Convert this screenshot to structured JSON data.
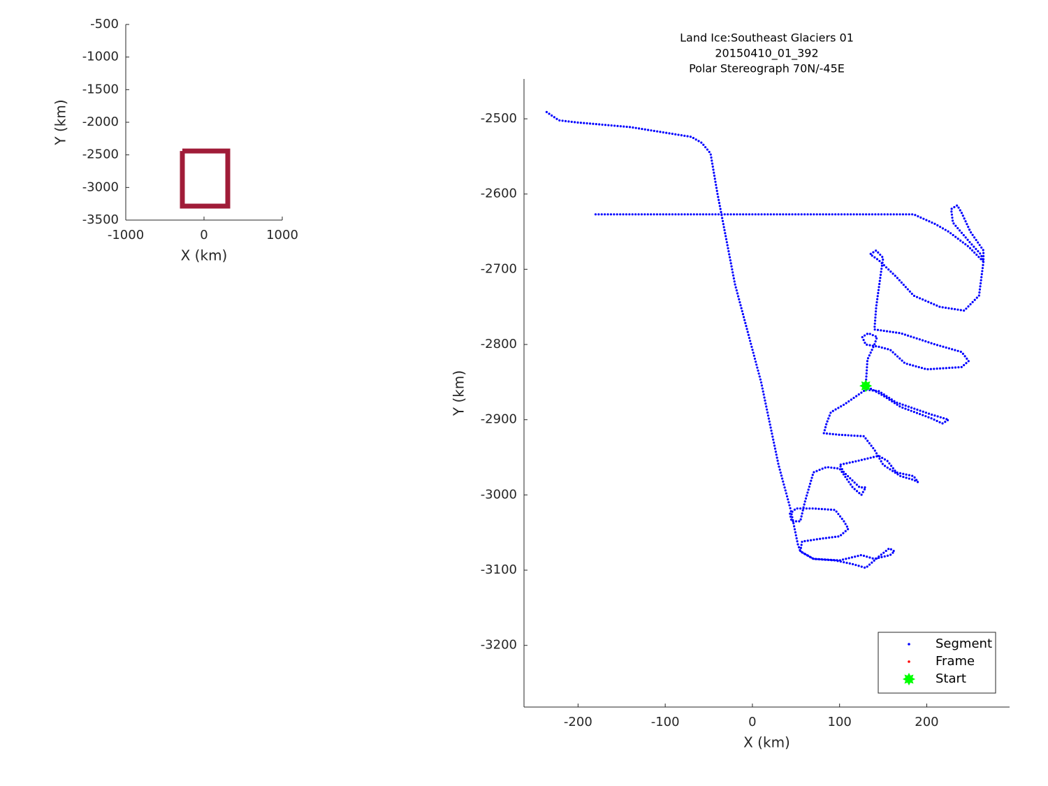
{
  "chart_data": [
    {
      "type": "line",
      "xlabel": "X (km)",
      "ylabel": "Y (km)",
      "xlim": [
        -1000,
        1000
      ],
      "ylim": [
        -3500,
        -500
      ],
      "xticks": [
        -1000,
        0,
        1000
      ],
      "yticks": [
        -3500,
        -3000,
        -2500,
        -2000,
        -1500,
        -1000,
        -500
      ],
      "series": [
        {
          "color": "#a01c38",
          "x": [
            -277,
            304,
            304,
            -277,
            -277
          ],
          "y": [
            -2440,
            -2440,
            -3286,
            -3286,
            -2440
          ]
        }
      ]
    },
    {
      "type": "line",
      "title": [
        "Land Ice:Southeast Glaciers 01",
        "20150410_01_392",
        "Polar Stereograph 70N/-45E"
      ],
      "xlabel": "X (km)",
      "ylabel": "Y (km)",
      "xlim": [
        -262,
        295
      ],
      "ylim": [
        -3282,
        -2447
      ],
      "xticks": [
        -200,
        -100,
        0,
        100,
        200
      ],
      "yticks": [
        -3200,
        -3100,
        -3000,
        -2900,
        -2800,
        -2700,
        -2600,
        -2500
      ],
      "legend": "southeast",
      "series": [
        {
          "name": "Segment",
          "color": "#0000ff",
          "marker": "point",
          "x": [
            -236,
            -222,
            -200,
            -140,
            -70,
            -58,
            -48,
            -40,
            -20,
            10,
            30,
            44,
            52,
            55,
            70,
            100,
            125,
            140,
            158,
            163,
            157,
            145,
            130,
            115,
            95,
            70,
            55,
            57,
            80,
            100,
            110,
            105,
            95,
            70,
            50,
            43,
            45,
            55,
            60,
            70,
            85,
            100,
            115,
            125,
            130,
            123,
            105,
            100,
            120,
            145,
            155,
            165,
            185,
            190,
            185,
            170,
            150,
            140,
            128,
            100,
            82,
            85,
            90,
            105,
            130,
            145,
            165,
            185,
            205,
            225,
            218,
            205,
            170,
            150,
            130,
            132,
            140,
            143,
            133,
            126,
            130,
            145,
            158,
            175,
            200,
            240,
            248,
            240,
            210,
            170,
            140,
            142,
            148,
            150,
            142,
            135,
            145,
            165,
            185,
            215,
            243,
            260,
            265,
            262,
            250,
            230,
            228,
            235,
            240,
            250,
            265,
            265,
            248,
            225,
            210,
            185,
            100,
            0,
            -100,
            -180
          ],
          "y": [
            -2491,
            -2502,
            -2505,
            -2511,
            -2524,
            -2532,
            -2546,
            -2600,
            -2720,
            -2850,
            -2960,
            -3020,
            -3065,
            -3075,
            -3085,
            -3087,
            -3080,
            -3085,
            -3080,
            -3075,
            -3071,
            -3082,
            -3097,
            -3092,
            -3087,
            -3085,
            -3075,
            -3062,
            -3058,
            -3055,
            -3045,
            -3035,
            -3020,
            -3018,
            -3018,
            -3025,
            -3035,
            -3035,
            -3010,
            -2970,
            -2963,
            -2965,
            -2990,
            -3000,
            -2990,
            -2990,
            -2970,
            -2960,
            -2955,
            -2948,
            -2955,
            -2970,
            -2975,
            -2983,
            -2980,
            -2975,
            -2960,
            -2940,
            -2922,
            -2920,
            -2918,
            -2905,
            -2890,
            -2880,
            -2860,
            -2862,
            -2877,
            -2885,
            -2893,
            -2900,
            -2905,
            -2898,
            -2883,
            -2868,
            -2855,
            -2820,
            -2800,
            -2790,
            -2785,
            -2790,
            -2800,
            -2803,
            -2807,
            -2825,
            -2833,
            -2830,
            -2822,
            -2810,
            -2800,
            -2785,
            -2780,
            -2750,
            -2700,
            -2685,
            -2675,
            -2680,
            -2688,
            -2710,
            -2735,
            -2750,
            -2755,
            -2735,
            -2690,
            -2680,
            -2665,
            -2638,
            -2620,
            -2615,
            -2625,
            -2650,
            -2675,
            -2690,
            -2670,
            -2650,
            -2640,
            -2627,
            -2627,
            -2627,
            -2627,
            -2627
          ]
        },
        {
          "name": "Frame",
          "color": "#ff0000",
          "marker": "point",
          "x": [],
          "y": []
        },
        {
          "name": "Start",
          "color": "#00ff00",
          "marker": "star",
          "x": [
            130
          ],
          "y": [
            -2855
          ]
        }
      ]
    }
  ]
}
